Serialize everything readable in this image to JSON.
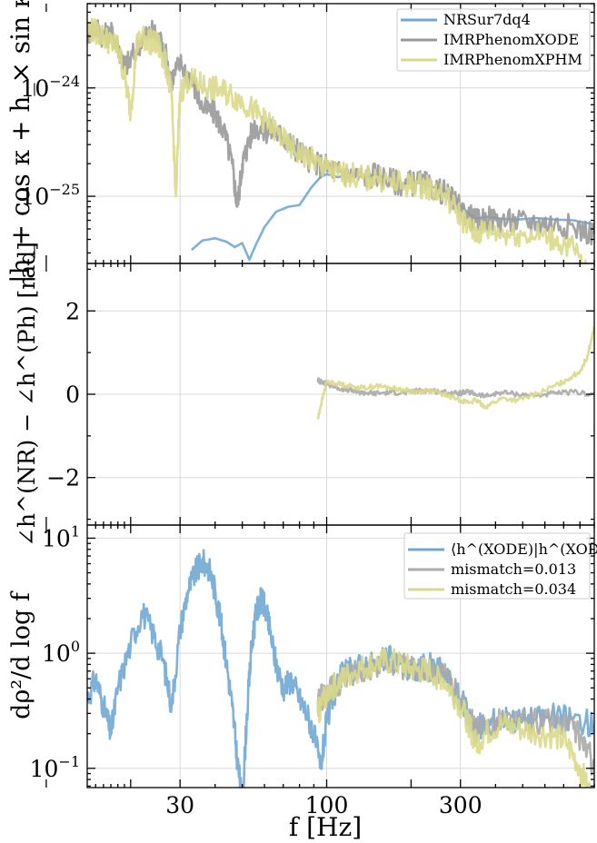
{
  "chart_data": [
    {
      "type": "line",
      "panel": "amplitude",
      "ylabel": "|h_+ cos κ + h_× sin κ|",
      "xscale": "log",
      "yscale": "log",
      "xlim": [
        14,
        900
      ],
      "ylim": [
        2.4e-26,
        6e-24
      ],
      "yticks": [
        {
          "value": 1e-24,
          "label": "10",
          "exp": "−24"
        },
        {
          "value": 1e-25,
          "label": "10",
          "exp": "−25"
        }
      ],
      "xgrid": [
        30,
        100,
        300
      ],
      "legend": {
        "position": "top-right",
        "entries": [
          "NRSur7dq4",
          "IMRPhenomXODE",
          "IMRPhenomXPHM"
        ]
      },
      "series": [
        {
          "name": "NRSur7dq4",
          "color": "#6fa8d4",
          "noisy": false,
          "x": [
            33,
            36,
            40,
            44,
            47,
            50,
            53,
            56,
            60,
            66,
            73,
            80,
            88,
            95,
            100,
            110,
            120,
            135,
            150,
            170,
            190,
            210,
            230,
            260,
            290,
            320,
            340,
            370,
            420,
            480,
            560,
            650,
            760,
            900
          ],
          "y": [
            3.2e-26,
            3.9e-26,
            4.1e-26,
            3.8e-26,
            3.4e-26,
            3.7e-26,
            2.6e-26,
            3.6e-26,
            5.2e-26,
            7.2e-26,
            8e-26,
            8.3e-26,
            1.2e-25,
            1.5e-25,
            1.6e-25,
            1.5e-25,
            1.6e-25,
            1.5e-25,
            1.6e-25,
            1.4e-25,
            1.3e-25,
            1.35e-25,
            1.25e-25,
            1.15e-25,
            9e-26,
            7e-26,
            6.2e-26,
            6.5e-26,
            6.2e-26,
            6.1e-26,
            6.3e-26,
            6.1e-26,
            6e-26,
            5.5e-26
          ]
        },
        {
          "name": "IMRPhenomXODE",
          "color": "#999999",
          "noisy": true,
          "x": [
            14,
            15,
            16,
            17,
            18,
            19,
            20,
            22,
            24,
            26,
            28,
            30,
            33,
            36,
            40,
            43,
            46,
            48,
            50,
            52,
            55,
            60,
            65,
            70,
            75,
            80,
            90,
            100,
            110,
            120,
            135,
            150,
            170,
            190,
            210,
            230,
            260,
            290,
            320,
            340,
            370,
            420,
            480,
            560,
            650,
            760,
            900
          ],
          "y": [
            3.2e-24,
            3.7e-24,
            3e-24,
            3.2e-24,
            2.5e-24,
            1.6e-24,
            1.8e-24,
            2.9e-24,
            3.3e-24,
            2.6e-24,
            1.2e-24,
            1.7e-24,
            1.2e-24,
            6.5e-25,
            5.8e-25,
            4e-25,
            2e-25,
            8e-26,
            2e-25,
            2.8e-25,
            4.5e-25,
            4e-25,
            4e-25,
            3.5e-25,
            3e-25,
            2.6e-25,
            2e-25,
            1.9e-25,
            1.7e-25,
            1.6e-25,
            1.5e-25,
            1.6e-25,
            1.4e-25,
            1.3e-25,
            1.35e-25,
            1.25e-25,
            1.1e-25,
            8.5e-26,
            6.8e-26,
            5.8e-26,
            6.3e-26,
            6e-26,
            5.8e-26,
            5.8e-26,
            5.6e-26,
            5.2e-26,
            4.5e-26
          ]
        },
        {
          "name": "IMRPhenomXPHM",
          "color": "#d9d98a",
          "noisy": true,
          "x": [
            14,
            15,
            16,
            17,
            18,
            19,
            20,
            21,
            22,
            23,
            24,
            25,
            26,
            27,
            28,
            29,
            30,
            32,
            35,
            38,
            42,
            46,
            50,
            55,
            60,
            66,
            72,
            80,
            88,
            95,
            100,
            110,
            120,
            135,
            150,
            170,
            190,
            210,
            230,
            260,
            290,
            320,
            340,
            370,
            420,
            480,
            560,
            650,
            760,
            900
          ],
          "y": [
            3.5e-24,
            3.3e-24,
            3e-24,
            2.6e-24,
            2.4e-24,
            1.3e-24,
            6e-25,
            2.5e-24,
            2.9e-24,
            2.8e-24,
            2.6e-24,
            2.5e-24,
            2e-24,
            1.5e-24,
            8e-25,
            1e-25,
            9e-25,
            1.2e-24,
            1.1e-24,
            1e-24,
            9.5e-25,
            8.5e-25,
            7.5e-25,
            6.2e-25,
            5e-25,
            4e-25,
            3e-25,
            2.5e-25,
            2.2e-25,
            1.9e-25,
            1.8e-25,
            1.6e-25,
            1.6e-25,
            1.45e-25,
            1.5e-25,
            1.35e-25,
            1.25e-25,
            1.3e-25,
            1.2e-25,
            1.05e-25,
            7.5e-26,
            5.2e-26,
            4.5e-26,
            4.9e-26,
            4.6e-26,
            4.5e-26,
            4.4e-26,
            4e-26,
            3.3e-26,
            1.4e-26
          ]
        }
      ]
    },
    {
      "type": "line",
      "panel": "phase-difference",
      "ylabel": "∠h^(NR) − ∠h^(Ph) [rad]",
      "xscale": "log",
      "yscale": "linear",
      "xlim": [
        14,
        900
      ],
      "ylim": [
        -3.14,
        3.14
      ],
      "yticks": [
        {
          "value": 2,
          "label": "2"
        },
        {
          "value": 0,
          "label": "0"
        },
        {
          "value": -2,
          "label": "−2"
        }
      ],
      "xgrid": [
        30,
        100,
        300
      ],
      "series": [
        {
          "name": "IMRPhenomXODE",
          "color": "#aaaaaa",
          "noisy": true,
          "x": [
            93,
            95,
            100,
            110,
            120,
            130,
            140,
            150,
            170,
            190,
            210,
            230,
            260,
            290,
            320,
            340,
            370,
            420,
            480,
            560,
            650,
            760,
            900
          ],
          "y": [
            0.35,
            0.3,
            0.25,
            0.15,
            0.1,
            0.05,
            0.03,
            0.02,
            0.05,
            0.03,
            0.08,
            0.1,
            0.05,
            0.02,
            0.05,
            0.0,
            -0.05,
            0.05,
            0.0,
            -0.03,
            0.02,
            0.05,
            0.0
          ]
        },
        {
          "name": "IMRPhenomXPHM",
          "color": "#d9d98a",
          "noisy": true,
          "x": [
            93,
            95,
            100,
            110,
            120,
            135,
            150,
            170,
            190,
            210,
            230,
            260,
            290,
            320,
            340,
            370,
            420,
            480,
            560,
            650,
            720,
            800,
            850,
            900
          ],
          "y": [
            -0.6,
            -0.3,
            0.3,
            0.25,
            0.2,
            0.15,
            0.2,
            0.15,
            0.1,
            0.05,
            0.1,
            0.0,
            -0.1,
            -0.2,
            -0.15,
            -0.3,
            -0.1,
            -0.15,
            0.0,
            0.2,
            0.35,
            0.55,
            0.9,
            1.6
          ]
        }
      ]
    },
    {
      "type": "line",
      "panel": "snr-integrand",
      "ylabel": "dρ²/d log f",
      "xlabel": "f [Hz]",
      "xscale": "log",
      "yscale": "log",
      "xlim": [
        14,
        900
      ],
      "ylim": [
        0.068,
        13
      ],
      "xticks": [
        {
          "value": 30,
          "label": "30"
        },
        {
          "value": 100,
          "label": "100"
        },
        {
          "value": 300,
          "label": "300"
        }
      ],
      "yticks": [
        {
          "value": 10,
          "label": "10",
          "exp": "1"
        },
        {
          "value": 1,
          "label": "10",
          "exp": "0"
        },
        {
          "value": 0.1,
          "label": "10",
          "exp": "−1"
        }
      ],
      "legend": {
        "position": "top-right",
        "entries": [
          "⟨h^(XODE)|h^(XODE)⟩",
          "mismatch=0.013",
          "mismatch=0.034"
        ]
      },
      "series": [
        {
          "name": "⟨h^(XODE)|h^(XODE)⟩",
          "color": "#6fa8d4",
          "noisy": true,
          "x": [
            14,
            15,
            16,
            17,
            18,
            20,
            22,
            24,
            26,
            28,
            30,
            32,
            34,
            36,
            38,
            40,
            42,
            44,
            46,
            48,
            50,
            52,
            54,
            56,
            58,
            60,
            63,
            66,
            70,
            75,
            80,
            85,
            90,
            95,
            100,
            110,
            120,
            135,
            150,
            170,
            190,
            210,
            230,
            260,
            290,
            320,
            340,
            370,
            420,
            480,
            560,
            650,
            760,
            900
          ],
          "y": [
            0.4,
            0.6,
            0.35,
            0.2,
            0.5,
            1.2,
            2.3,
            1.5,
            0.9,
            0.35,
            1.6,
            3.5,
            5.0,
            6.2,
            5.5,
            3.5,
            1.8,
            0.8,
            0.35,
            0.12,
            0.05,
            0.3,
            1.2,
            2.2,
            2.9,
            2.6,
            1.5,
            0.8,
            0.5,
            0.6,
            0.4,
            0.3,
            0.2,
            0.1,
            0.25,
            0.6,
            0.7,
            0.8,
            0.8,
            0.9,
            0.75,
            0.7,
            0.8,
            0.7,
            0.45,
            0.3,
            0.22,
            0.24,
            0.28,
            0.26,
            0.27,
            0.28,
            0.27,
            0.24
          ]
        },
        {
          "name": "mismatch=0.013",
          "color": "#aaaaaa",
          "noisy": true,
          "x": [
            93,
            95,
            100,
            110,
            120,
            135,
            150,
            170,
            190,
            210,
            230,
            260,
            290,
            320,
            340,
            370,
            420,
            480,
            560,
            650,
            760,
            850,
            900
          ],
          "y": [
            0.35,
            0.4,
            0.45,
            0.55,
            0.65,
            0.75,
            0.8,
            0.85,
            0.75,
            0.7,
            0.75,
            0.65,
            0.45,
            0.3,
            0.21,
            0.23,
            0.27,
            0.25,
            0.26,
            0.26,
            0.22,
            0.15,
            0.1
          ]
        },
        {
          "name": "mismatch=0.034",
          "color": "#d9d98a",
          "noisy": true,
          "x": [
            93,
            95,
            100,
            110,
            120,
            135,
            150,
            170,
            190,
            210,
            230,
            260,
            290,
            320,
            340,
            370,
            420,
            480,
            560,
            650,
            720,
            800,
            850,
            900
          ],
          "y": [
            0.3,
            0.35,
            0.45,
            0.55,
            0.65,
            0.75,
            0.8,
            0.85,
            0.75,
            0.7,
            0.7,
            0.6,
            0.4,
            0.25,
            0.16,
            0.2,
            0.24,
            0.22,
            0.2,
            0.19,
            0.16,
            0.1,
            0.07,
            0.04
          ]
        }
      ]
    }
  ]
}
